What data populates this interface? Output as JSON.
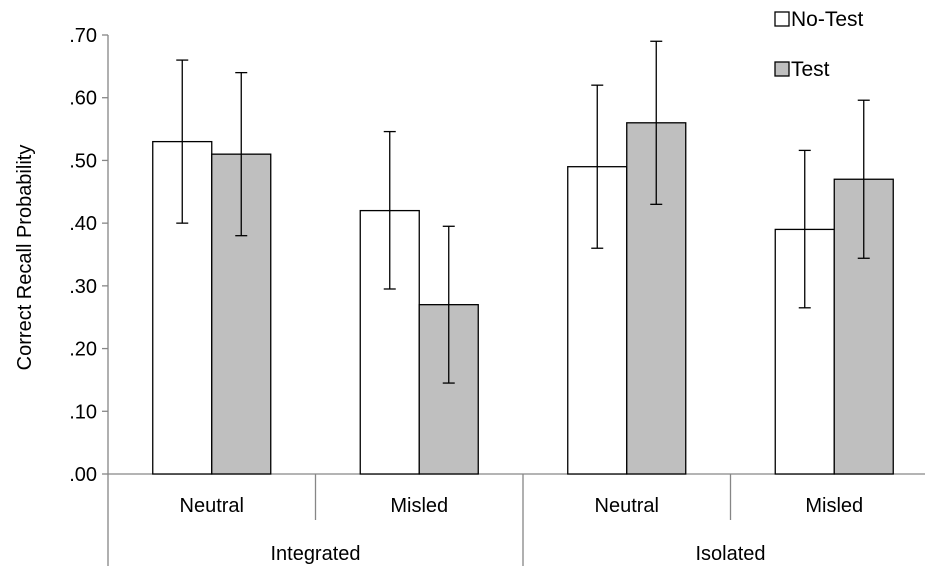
{
  "chart_data": {
    "type": "bar",
    "ylabel": "Correct Recall Probability",
    "ylim": [
      0,
      0.7
    ],
    "yticks": [
      ".00",
      ".10",
      ".20",
      ".30",
      ".40",
      ".50",
      ".60",
      ".70"
    ],
    "categories": [
      "Neutral",
      "Misled",
      "Neutral",
      "Misled"
    ],
    "groups": [
      "Integrated",
      "Isolated"
    ],
    "series": [
      {
        "name": "No-Test",
        "color": "#ffffff",
        "values": [
          0.53,
          0.42,
          0.49,
          0.39
        ],
        "error_low": [
          0.4,
          0.295,
          0.36,
          0.265
        ],
        "error_high": [
          0.66,
          0.546,
          0.62,
          0.516
        ]
      },
      {
        "name": "Test",
        "color": "#bfbfbf",
        "values": [
          0.51,
          0.27,
          0.56,
          0.47
        ],
        "error_low": [
          0.38,
          0.145,
          0.43,
          0.344
        ],
        "error_high": [
          0.64,
          0.395,
          0.69,
          0.596
        ]
      }
    ],
    "grid": false,
    "legend_position": "top-right"
  }
}
